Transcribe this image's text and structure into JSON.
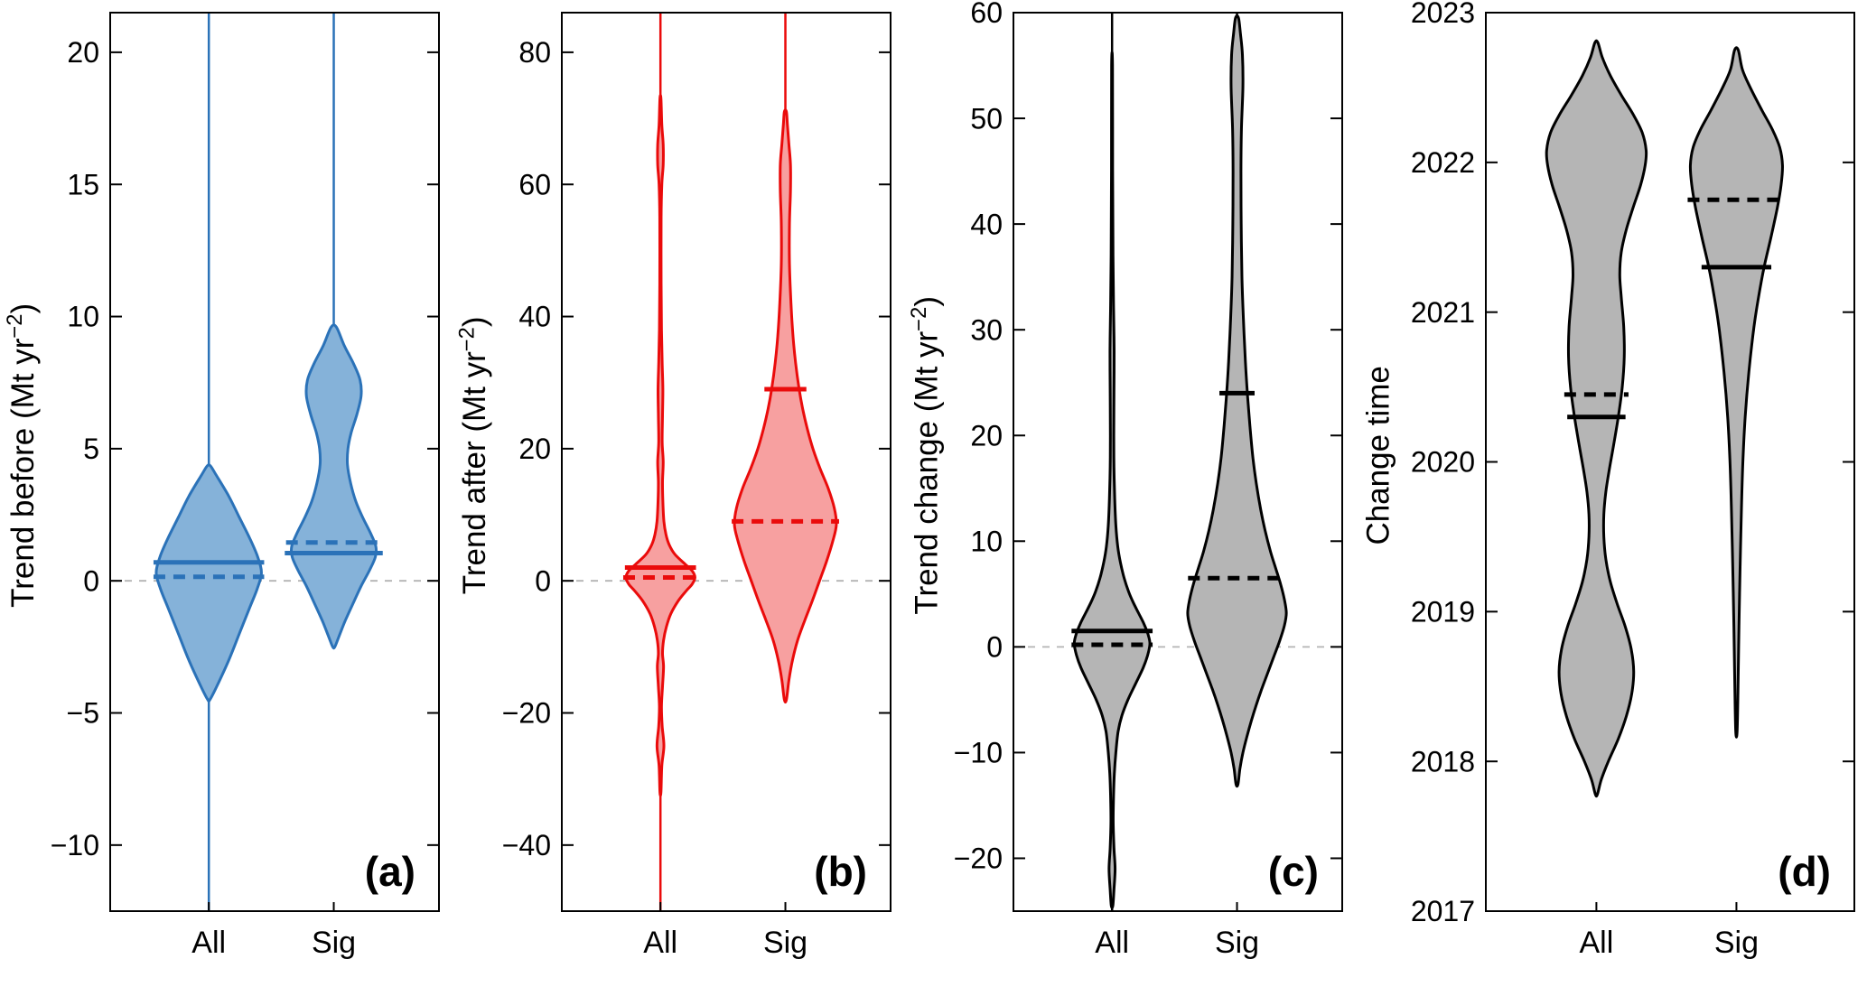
{
  "figure": {
    "kind": "violin-plot-figure",
    "panels": [
      "(a)",
      "(b)",
      "(c)",
      "(d)"
    ]
  },
  "chart_data": [
    {
      "id": "a",
      "type": "violin",
      "panel_label": "(a)",
      "ylabel": "Trend before (Mt yr⁻²)",
      "ylabel_parts": {
        "prefix": "Trend before (Mt yr",
        "sup": "−2",
        "suffix": ")"
      },
      "categories": [
        "All",
        "Sig"
      ],
      "positions": [
        0.3,
        0.68
      ],
      "ylim": [
        -12.5,
        21.5
      ],
      "yticks": [
        -10,
        -5,
        0,
        5,
        10,
        15,
        20
      ],
      "zero_line": true,
      "outline_color": "#2b72b8",
      "fill_color": "#85b2d9",
      "stat_color": "#2b72b8",
      "violins": [
        {
          "category": "All",
          "spike": [
            -12.5,
            21.5
          ],
          "line_solid": 0.7,
          "line_dashed": 0.15,
          "max_halfwidth_frac": 0.16,
          "profile": [
            [
              -4.5,
              0.02
            ],
            [
              -4.0,
              0.15
            ],
            [
              -3.0,
              0.38
            ],
            [
              -2.0,
              0.58
            ],
            [
              -1.0,
              0.78
            ],
            [
              -0.3,
              0.92
            ],
            [
              0.3,
              1.0
            ],
            [
              0.9,
              0.93
            ],
            [
              1.6,
              0.78
            ],
            [
              2.4,
              0.58
            ],
            [
              3.2,
              0.38
            ],
            [
              4.0,
              0.14
            ],
            [
              4.35,
              0.03
            ]
          ]
        },
        {
          "category": "Sig",
          "spike": [
            9.0,
            21.5
          ],
          "line_solid": 1.05,
          "line_dashed": 1.45,
          "max_halfwidth_frac": 0.16,
          "profile": [
            [
              -2.5,
              0.02
            ],
            [
              -2.1,
              0.1
            ],
            [
              -1.5,
              0.22
            ],
            [
              -0.8,
              0.38
            ],
            [
              -0.2,
              0.52
            ],
            [
              0.4,
              0.68
            ],
            [
              0.9,
              0.79
            ],
            [
              1.3,
              0.8
            ],
            [
              1.8,
              0.7
            ],
            [
              2.4,
              0.55
            ],
            [
              3.0,
              0.42
            ],
            [
              3.7,
              0.32
            ],
            [
              4.4,
              0.26
            ],
            [
              5.0,
              0.27
            ],
            [
              5.6,
              0.33
            ],
            [
              6.3,
              0.44
            ],
            [
              7.0,
              0.52
            ],
            [
              7.6,
              0.5
            ],
            [
              8.2,
              0.38
            ],
            [
              8.9,
              0.2
            ],
            [
              9.6,
              0.05
            ]
          ]
        }
      ]
    },
    {
      "id": "b",
      "type": "violin",
      "panel_label": "(b)",
      "ylabel": "Trend after (Mt yr⁻²)",
      "ylabel_parts": {
        "prefix": "Trend after (Mt yr",
        "sup": "−2",
        "suffix": ")"
      },
      "categories": [
        "All",
        "Sig"
      ],
      "positions": [
        0.3,
        0.68
      ],
      "ylim": [
        -50,
        86
      ],
      "yticks": [
        -40,
        -20,
        0,
        20,
        40,
        60,
        80
      ],
      "zero_line": true,
      "outline_color": "#ea0b0b",
      "fill_color": "#f7a0a0",
      "stat_color": "#ea0b0b",
      "violins": [
        {
          "category": "All",
          "spike": [
            -50,
            86
          ],
          "line_solid": 2.0,
          "line_dashed": 0.5,
          "max_halfwidth_frac": 0.105,
          "profile": [
            [
              -32,
              0.015
            ],
            [
              -28,
              0.04
            ],
            [
              -25,
              0.1
            ],
            [
              -22,
              0.05
            ],
            [
              -19,
              0.03
            ],
            [
              -16,
              0.06
            ],
            [
              -13,
              0.09
            ],
            [
              -11,
              0.06
            ],
            [
              -9,
              0.09
            ],
            [
              -7,
              0.17
            ],
            [
              -5,
              0.3
            ],
            [
              -3,
              0.52
            ],
            [
              -1.5,
              0.75
            ],
            [
              -0.5,
              0.92
            ],
            [
              0.5,
              1.0
            ],
            [
              1.5,
              0.92
            ],
            [
              2.5,
              0.72
            ],
            [
              4,
              0.42
            ],
            [
              5.5,
              0.25
            ],
            [
              7,
              0.16
            ],
            [
              9,
              0.1
            ],
            [
              12,
              0.07
            ],
            [
              15,
              0.06
            ],
            [
              18,
              0.08
            ],
            [
              21,
              0.05
            ],
            [
              25,
              0.06
            ],
            [
              29,
              0.07
            ],
            [
              33,
              0.05
            ],
            [
              38,
              0.03
            ],
            [
              45,
              0.02
            ],
            [
              55,
              0.02
            ],
            [
              60,
              0.04
            ],
            [
              63,
              0.08
            ],
            [
              66,
              0.08
            ],
            [
              69,
              0.04
            ],
            [
              73,
              0.015
            ]
          ]
        },
        {
          "category": "Sig",
          "spike": [
            65,
            86
          ],
          "line_solid": 29,
          "line_dashed": 9,
          "max_halfwidth_frac": 0.155,
          "profile": [
            [
              -18,
              0.02
            ],
            [
              -15,
              0.07
            ],
            [
              -12,
              0.14
            ],
            [
              -9,
              0.24
            ],
            [
              -6,
              0.38
            ],
            [
              -3,
              0.53
            ],
            [
              0,
              0.67
            ],
            [
              3,
              0.81
            ],
            [
              6,
              0.93
            ],
            [
              8.5,
              1.0
            ],
            [
              11,
              0.96
            ],
            [
              14,
              0.84
            ],
            [
              17,
              0.68
            ],
            [
              20,
              0.54
            ],
            [
              23,
              0.43
            ],
            [
              26,
              0.34
            ],
            [
              29,
              0.27
            ],
            [
              33,
              0.2
            ],
            [
              37,
              0.15
            ],
            [
              42,
              0.11
            ],
            [
              48,
              0.08
            ],
            [
              54,
              0.08
            ],
            [
              59,
              0.1
            ],
            [
              63,
              0.1
            ],
            [
              66,
              0.07
            ],
            [
              69,
              0.04
            ],
            [
              71,
              0.02
            ]
          ]
        }
      ]
    },
    {
      "id": "c",
      "type": "violin",
      "panel_label": "(c)",
      "ylabel": "Trend change (Mt yr⁻²)",
      "ylabel_parts": {
        "prefix": "Trend change (Mt yr",
        "sup": "−2",
        "suffix": ")"
      },
      "categories": [
        "All",
        "Sig"
      ],
      "positions": [
        0.3,
        0.68
      ],
      "ylim": [
        -25,
        60
      ],
      "yticks": [
        -20,
        -10,
        0,
        10,
        20,
        30,
        40,
        50,
        60
      ],
      "zero_line": true,
      "outline_color": "#000000",
      "fill_color": "#b5b5b5",
      "stat_color": "#000000",
      "violins": [
        {
          "category": "All",
          "spike": [
            -25,
            60
          ],
          "line_solid": 1.5,
          "line_dashed": 0.2,
          "max_halfwidth_frac": 0.115,
          "profile": [
            [
              -24.5,
              0.02
            ],
            [
              -23,
              0.05
            ],
            [
              -21,
              0.08
            ],
            [
              -19,
              0.05
            ],
            [
              -16.5,
              0.03
            ],
            [
              -14,
              0.04
            ],
            [
              -12,
              0.06
            ],
            [
              -10,
              0.1
            ],
            [
              -8,
              0.16
            ],
            [
              -6.5,
              0.26
            ],
            [
              -5,
              0.42
            ],
            [
              -3.5,
              0.62
            ],
            [
              -2,
              0.82
            ],
            [
              -0.8,
              0.94
            ],
            [
              0.3,
              1.0
            ],
            [
              1.2,
              0.95
            ],
            [
              2.2,
              0.84
            ],
            [
              3.2,
              0.7
            ],
            [
              4.2,
              0.56
            ],
            [
              5.2,
              0.44
            ],
            [
              6.5,
              0.32
            ],
            [
              8,
              0.22
            ],
            [
              9.5,
              0.15
            ],
            [
              11.5,
              0.1
            ],
            [
              14,
              0.07
            ],
            [
              17,
              0.05
            ],
            [
              20,
              0.045
            ],
            [
              24,
              0.05
            ],
            [
              28,
              0.055
            ],
            [
              32,
              0.04
            ],
            [
              37,
              0.025
            ],
            [
              45,
              0.015
            ],
            [
              55,
              0.012
            ]
          ]
        },
        {
          "category": "Sig",
          "spike": [
            55,
            60
          ],
          "line_solid": 24,
          "line_dashed": 6.5,
          "max_halfwidth_frac": 0.15,
          "profile": [
            [
              -13,
              0.02
            ],
            [
              -11.5,
              0.06
            ],
            [
              -10,
              0.12
            ],
            [
              -8.5,
              0.2
            ],
            [
              -7,
              0.29
            ],
            [
              -5.5,
              0.39
            ],
            [
              -4,
              0.5
            ],
            [
              -2.5,
              0.62
            ],
            [
              -1,
              0.74
            ],
            [
              0.5,
              0.86
            ],
            [
              2,
              0.96
            ],
            [
              3.2,
              1.0
            ],
            [
              4.5,
              0.96
            ],
            [
              6,
              0.88
            ],
            [
              7.5,
              0.78
            ],
            [
              9,
              0.68
            ],
            [
              11,
              0.57
            ],
            [
              13,
              0.48
            ],
            [
              15.5,
              0.39
            ],
            [
              18,
              0.32
            ],
            [
              21,
              0.26
            ],
            [
              24,
              0.21
            ],
            [
              27,
              0.17
            ],
            [
              31,
              0.13
            ],
            [
              35,
              0.1
            ],
            [
              40,
              0.085
            ],
            [
              45,
              0.08
            ],
            [
              49,
              0.09
            ],
            [
              53,
              0.12
            ],
            [
              56,
              0.11
            ],
            [
              58,
              0.07
            ],
            [
              59.5,
              0.03
            ]
          ]
        }
      ]
    },
    {
      "id": "d",
      "type": "violin",
      "panel_label": "(d)",
      "ylabel": "Change time",
      "ylabel_parts": {
        "prefix": "Change time",
        "sup": "",
        "suffix": ""
      },
      "categories": [
        "All",
        "Sig"
      ],
      "positions": [
        0.3,
        0.68
      ],
      "ylim": [
        2017,
        2023
      ],
      "yticks": [
        2017,
        2018,
        2019,
        2020,
        2021,
        2022,
        2023
      ],
      "zero_line": false,
      "outline_color": "#000000",
      "fill_color": "#b5b5b5",
      "stat_color": "#000000",
      "violins": [
        {
          "category": "All",
          "spike": null,
          "line_solid": 2020.3,
          "line_dashed": 2020.45,
          "max_halfwidth_frac": 0.135,
          "profile": [
            [
              2017.78,
              0.02
            ],
            [
              2017.88,
              0.1
            ],
            [
              2018.0,
              0.24
            ],
            [
              2018.15,
              0.44
            ],
            [
              2018.3,
              0.6
            ],
            [
              2018.45,
              0.71
            ],
            [
              2018.6,
              0.75
            ],
            [
              2018.75,
              0.7
            ],
            [
              2018.9,
              0.58
            ],
            [
              2019.05,
              0.42
            ],
            [
              2019.2,
              0.28
            ],
            [
              2019.35,
              0.19
            ],
            [
              2019.5,
              0.15
            ],
            [
              2019.65,
              0.15
            ],
            [
              2019.8,
              0.19
            ],
            [
              2019.95,
              0.26
            ],
            [
              2020.1,
              0.34
            ],
            [
              2020.3,
              0.44
            ],
            [
              2020.5,
              0.52
            ],
            [
              2020.7,
              0.56
            ],
            [
              2020.9,
              0.55
            ],
            [
              2021.1,
              0.5
            ],
            [
              2021.25,
              0.47
            ],
            [
              2021.4,
              0.5
            ],
            [
              2021.55,
              0.6
            ],
            [
              2021.7,
              0.74
            ],
            [
              2021.85,
              0.89
            ],
            [
              2021.98,
              0.98
            ],
            [
              2022.08,
              1.0
            ],
            [
              2022.2,
              0.92
            ],
            [
              2022.32,
              0.74
            ],
            [
              2022.45,
              0.5
            ],
            [
              2022.58,
              0.28
            ],
            [
              2022.7,
              0.12
            ],
            [
              2022.8,
              0.03
            ]
          ]
        },
        {
          "category": "Sig",
          "spike": null,
          "line_solid": 2021.3,
          "line_dashed": 2021.75,
          "max_halfwidth_frac": 0.125,
          "profile": [
            [
              2018.2,
              0.015
            ],
            [
              2018.5,
              0.035
            ],
            [
              2018.9,
              0.055
            ],
            [
              2019.3,
              0.08
            ],
            [
              2019.7,
              0.11
            ],
            [
              2020.0,
              0.14
            ],
            [
              2020.3,
              0.19
            ],
            [
              2020.6,
              0.27
            ],
            [
              2020.9,
              0.38
            ],
            [
              2021.1,
              0.48
            ],
            [
              2021.3,
              0.6
            ],
            [
              2021.5,
              0.75
            ],
            [
              2021.7,
              0.89
            ],
            [
              2021.85,
              0.97
            ],
            [
              2021.98,
              1.0
            ],
            [
              2022.1,
              0.94
            ],
            [
              2022.22,
              0.78
            ],
            [
              2022.35,
              0.55
            ],
            [
              2022.5,
              0.3
            ],
            [
              2022.62,
              0.13
            ],
            [
              2022.75,
              0.04
            ]
          ]
        }
      ]
    }
  ]
}
